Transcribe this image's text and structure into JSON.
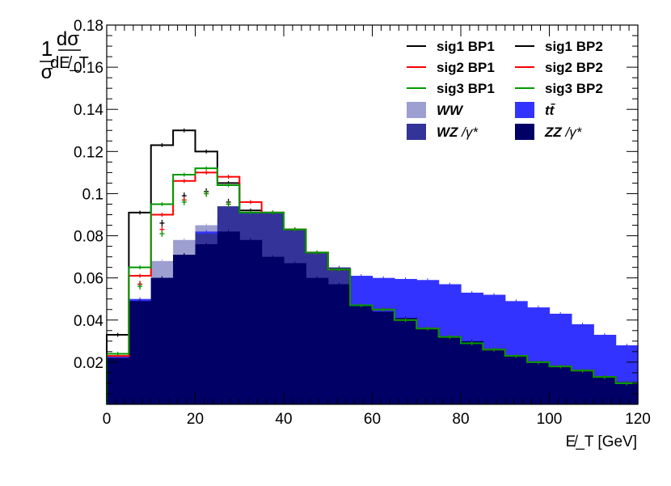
{
  "chart_data": {
    "type": "bar",
    "xlabel": "E̸_T [GeV]",
    "ylabel": {
      "prefix_num": "1",
      "prefix_den": "σ",
      "frac_num": "dσ",
      "frac_den": "dE̸_T"
    },
    "xlim": [
      0,
      120
    ],
    "ylim": [
      0,
      0.18
    ],
    "bin_width": 5,
    "x_ticks": [
      0,
      20,
      40,
      60,
      80,
      100,
      120
    ],
    "y_ticks": [
      0.02,
      0.04,
      0.06,
      0.08,
      0.1,
      0.12,
      0.14,
      0.16,
      0.18
    ],
    "x_tick_labels": [
      "0",
      "20",
      "40",
      "60",
      "80",
      "100",
      "120"
    ],
    "y_tick_labels": [
      "0.02",
      "0.04",
      "0.06",
      "0.08",
      "0.1",
      "0.12",
      "0.14",
      "0.16",
      "0.18"
    ],
    "legend_position": "top-right",
    "backgrounds": [
      {
        "name": "WW",
        "label_main": "WW",
        "label_suffix": "",
        "color": "#9d9fd0",
        "values": [
          0.022,
          0.049,
          0.068,
          0.078,
          0.085,
          0.083,
          0.079,
          0.072,
          0.068,
          0.062,
          0.058,
          0.048,
          0.045,
          0.04,
          0.036,
          0.032,
          0.029,
          0.026,
          0.023,
          0.02,
          0.018,
          0.016,
          0.013,
          0.011
        ]
      },
      {
        "name": "ttbar",
        "label_main": "tt̄",
        "label_suffix": "",
        "color": "#3333ff",
        "values": [
          0.023,
          0.05,
          0.06,
          0.071,
          0.082,
          0.088,
          0.083,
          0.075,
          0.072,
          0.067,
          0.063,
          0.061,
          0.06,
          0.0595,
          0.059,
          0.057,
          0.053,
          0.052,
          0.049,
          0.046,
          0.043,
          0.038,
          0.033,
          0.028
        ]
      },
      {
        "name": "WZ",
        "label_main": "WZ",
        "label_suffix": "/γ*",
        "color": "#333399",
        "values": [
          0.022,
          0.049,
          0.06,
          0.071,
          0.081,
          0.094,
          0.091,
          0.091,
          0.083,
          0.072,
          0.065,
          0.047,
          0.044,
          0.04,
          0.036,
          0.032,
          0.029,
          0.026,
          0.023,
          0.02,
          0.018,
          0.016,
          0.013,
          0.011
        ]
      },
      {
        "name": "ZZ",
        "label_main": "ZZ",
        "label_suffix": "/γ*",
        "color": "#000066",
        "values": [
          0.022,
          0.049,
          0.06,
          0.071,
          0.076,
          0.082,
          0.078,
          0.07,
          0.067,
          0.06,
          0.057,
          0.047,
          0.044,
          0.041,
          0.036,
          0.032,
          0.03,
          0.026,
          0.023,
          0.02,
          0.018,
          0.016,
          0.013,
          0.01
        ]
      }
    ],
    "signals_bp1": [
      {
        "name": "sig1 BP1",
        "color": "#000000",
        "values": [
          0.033,
          0.091,
          0.123,
          0.13,
          0.12,
          0.105,
          0.092,
          0.091,
          0.083,
          0.072,
          0.064,
          0.047,
          0.045,
          0.04,
          0.036,
          0.032,
          0.029,
          0.026,
          0.023,
          0.02,
          0.018,
          0.016,
          0.013,
          0.01
        ]
      },
      {
        "name": "sig2 BP1",
        "color": "#ff0000",
        "values": [
          0.023,
          0.061,
          0.09,
          0.106,
          0.11,
          0.108,
          0.096,
          0.091,
          0.083,
          0.072,
          0.064,
          0.047,
          0.045,
          0.04,
          0.036,
          0.032,
          0.029,
          0.026,
          0.023,
          0.02,
          0.018,
          0.016,
          0.013,
          0.01
        ]
      },
      {
        "name": "sig3 BP1",
        "color": "#009900",
        "values": [
          0.024,
          0.065,
          0.095,
          0.109,
          0.112,
          0.104,
          0.091,
          0.091,
          0.083,
          0.072,
          0.064,
          0.047,
          0.045,
          0.04,
          0.036,
          0.032,
          0.029,
          0.026,
          0.023,
          0.02,
          0.018,
          0.016,
          0.013,
          0.01
        ]
      }
    ],
    "signals_bp2": [
      {
        "name": "sig1 BP2",
        "color": "#000000",
        "x": [
          7.5,
          12.5,
          17.5,
          22.5,
          27.5
        ],
        "values": [
          0.057,
          0.086,
          0.099,
          0.101,
          0.096
        ]
      },
      {
        "name": "sig2 BP2",
        "color": "#ff0000",
        "x": [
          7.5,
          12.5,
          17.5,
          22.5,
          27.5
        ],
        "values": [
          0.057,
          0.083,
          0.097,
          0.1,
          0.095
        ]
      },
      {
        "name": "sig3 BP2",
        "color": "#009900",
        "x": [
          7.5,
          12.5,
          17.5,
          22.5,
          27.5
        ],
        "values": [
          0.056,
          0.081,
          0.096,
          0.1,
          0.095
        ]
      }
    ]
  }
}
